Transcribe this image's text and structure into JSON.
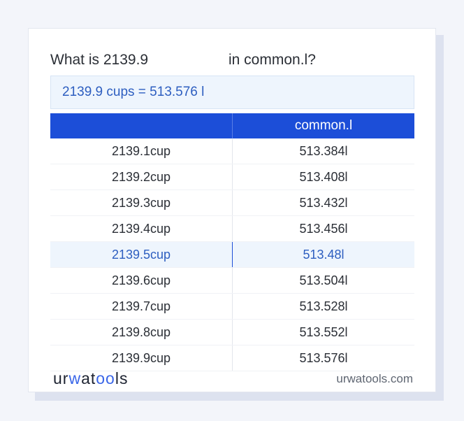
{
  "question": {
    "left": "What is 2139.9",
    "right": "in common.l?"
  },
  "result": "2139.9 cups = 513.576 l",
  "table": {
    "headers": [
      "",
      "common.l"
    ],
    "rows": [
      [
        "2139.1cup",
        "513.384l"
      ],
      [
        "2139.2cup",
        "513.408l"
      ],
      [
        "2139.3cup",
        "513.432l"
      ],
      [
        "2139.4cup",
        "513.456l"
      ],
      [
        "2139.5cup",
        "513.48l"
      ],
      [
        "2139.6cup",
        "513.504l"
      ],
      [
        "2139.7cup",
        "513.528l"
      ],
      [
        "2139.8cup",
        "513.552l"
      ],
      [
        "2139.9cup",
        "513.576l"
      ]
    ],
    "highlighted_row": 4
  },
  "brand": {
    "logo_a": "ur",
    "logo_b": "w",
    "logo_c": "at",
    "logo_d": "oo",
    "logo_e": "ls",
    "site": "urwatools.com"
  },
  "colors": {
    "header_bg": "#1c4ed8",
    "accent_text": "#2d5ec0",
    "highlight_bg": "#eef5fd"
  }
}
